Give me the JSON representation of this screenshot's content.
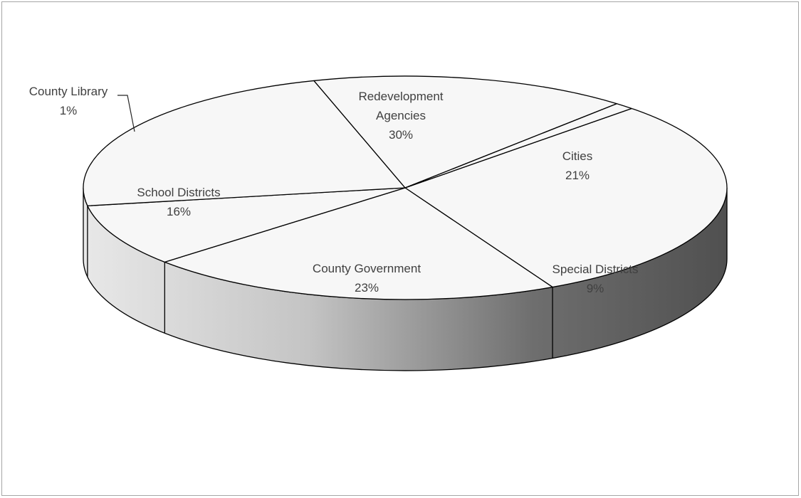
{
  "chart_data": {
    "type": "pie",
    "style": "3d",
    "categories": [
      "Redevelopment Agencies",
      "Cities",
      "Special Districts",
      "County Government",
      "School Districts",
      "County Library"
    ],
    "values": [
      30,
      21,
      9,
      23,
      16,
      1
    ],
    "labels": [
      {
        "name": [
          "Redevelopment",
          "Agencies"
        ],
        "pct": "30%"
      },
      {
        "name": [
          "Cities"
        ],
        "pct": "21%"
      },
      {
        "name": [
          "Special Districts"
        ],
        "pct": "9%"
      },
      {
        "name": [
          "County Government"
        ],
        "pct": "23%"
      },
      {
        "name": [
          "School Districts"
        ],
        "pct": "16%"
      },
      {
        "name": [
          "County Library"
        ],
        "pct": "1%"
      }
    ],
    "legend": "none",
    "colors": {
      "top": "#f7f7f7",
      "outline": "#000000",
      "side_light": "#e6e6e6",
      "side_dark": "#5a5a5a",
      "label_text": "#404040",
      "frame_border": "#a6a6a6"
    }
  }
}
